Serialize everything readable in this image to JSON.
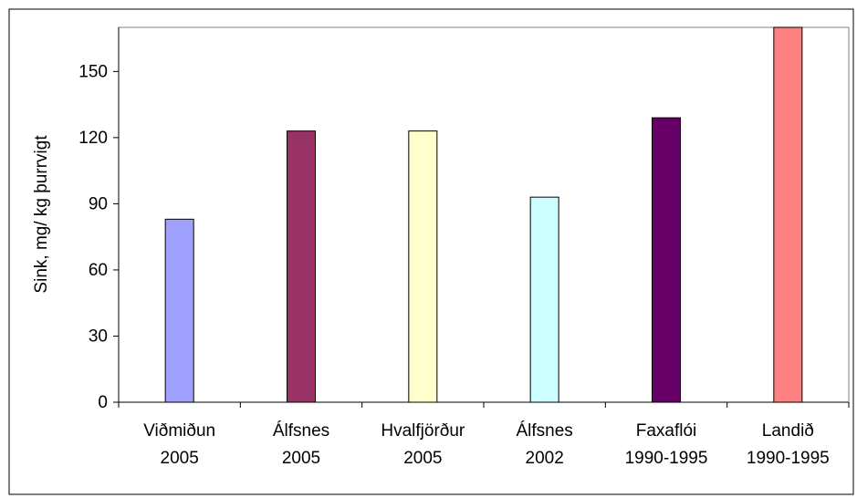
{
  "chart_data": {
    "type": "bar",
    "categories": [
      [
        "Viðmiðun",
        "2005"
      ],
      [
        "Álfsnes",
        "2005"
      ],
      [
        "Hvalfjörður",
        "2005"
      ],
      [
        "Álfsnes",
        "2002"
      ],
      [
        "Faxaflói",
        "1990-1995"
      ],
      [
        "Landið",
        "1990-1995"
      ]
    ],
    "values": [
      83,
      123,
      123,
      93,
      129,
      170
    ],
    "bar_colors": [
      "#a0a0ff",
      "#993366",
      "#ffffcc",
      "#ccffff",
      "#660066",
      "#ff8080"
    ],
    "title": "",
    "xlabel": "",
    "ylabel": "Sink, mg/ kg þurrvigt",
    "ylim": [
      0,
      170
    ],
    "yticks": [
      0,
      30,
      60,
      90,
      120,
      150
    ],
    "grid": false,
    "legend": "none"
  }
}
